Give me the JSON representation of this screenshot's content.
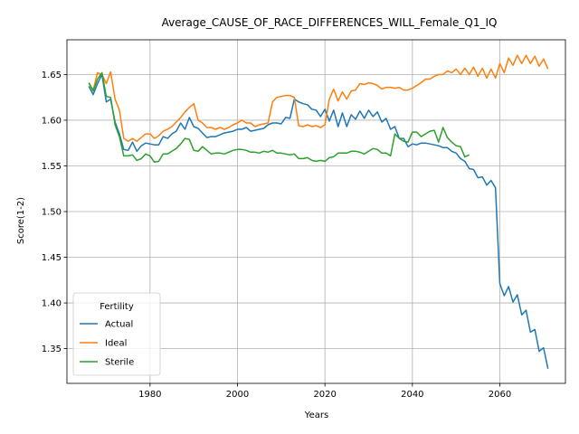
{
  "chart_data": {
    "type": "line",
    "title": "Average_CAUSE_OF_RACE_DIFFERENCES_WILL_Female_Q1_IQ",
    "xlabel": "Years",
    "ylabel": "Score(1-2)",
    "xlim": [
      1961,
      2075
    ],
    "ylim": [
      1.312,
      1.688
    ],
    "xticks": [
      1980,
      2000,
      2020,
      2040,
      2060
    ],
    "yticks": [
      1.35,
      1.4,
      1.45,
      1.5,
      1.55,
      1.6,
      1.65
    ],
    "grid": true,
    "legend": {
      "title": "Fertility",
      "position": "lower-left"
    },
    "series": [
      {
        "name": "Actual",
        "color": "#1f77b4",
        "points": [
          [
            1966,
            1.637
          ],
          [
            1967,
            1.628
          ],
          [
            1968,
            1.64
          ],
          [
            1969,
            1.65
          ],
          [
            1970,
            1.62
          ],
          [
            1971,
            1.623
          ],
          [
            1972,
            1.598
          ],
          [
            1973,
            1.585
          ],
          [
            1974,
            1.568
          ],
          [
            1975,
            1.567
          ],
          [
            1976,
            1.576
          ],
          [
            1977,
            1.566
          ],
          [
            1978,
            1.572
          ],
          [
            1979,
            1.575
          ],
          [
            1980,
            1.574
          ],
          [
            1981,
            1.573
          ],
          [
            1982,
            1.573
          ],
          [
            1983,
            1.582
          ],
          [
            1984,
            1.58
          ],
          [
            1985,
            1.585
          ],
          [
            1986,
            1.588
          ],
          [
            1987,
            1.597
          ],
          [
            1988,
            1.59
          ],
          [
            1989,
            1.603
          ],
          [
            1990,
            1.593
          ],
          [
            1991,
            1.591
          ],
          [
            1992,
            1.586
          ],
          [
            1993,
            1.581
          ],
          [
            1994,
            1.582
          ],
          [
            1995,
            1.582
          ],
          [
            1996,
            1.584
          ],
          [
            1997,
            1.586
          ],
          [
            1998,
            1.587
          ],
          [
            1999,
            1.588
          ],
          [
            2000,
            1.59
          ],
          [
            2001,
            1.59
          ],
          [
            2002,
            1.592
          ],
          [
            2003,
            1.588
          ],
          [
            2004,
            1.589
          ],
          [
            2005,
            1.59
          ],
          [
            2006,
            1.591
          ],
          [
            2007,
            1.595
          ],
          [
            2008,
            1.597
          ],
          [
            2009,
            1.597
          ],
          [
            2010,
            1.596
          ],
          [
            2011,
            1.603
          ],
          [
            2012,
            1.602
          ],
          [
            2013,
            1.623
          ],
          [
            2014,
            1.62
          ],
          [
            2015,
            1.618
          ],
          [
            2016,
            1.617
          ],
          [
            2017,
            1.612
          ],
          [
            2018,
            1.611
          ],
          [
            2019,
            1.604
          ],
          [
            2020,
            1.612
          ],
          [
            2021,
            1.599
          ],
          [
            2022,
            1.611
          ],
          [
            2023,
            1.593
          ],
          [
            2024,
            1.608
          ],
          [
            2025,
            1.593
          ],
          [
            2026,
            1.606
          ],
          [
            2027,
            1.601
          ],
          [
            2028,
            1.61
          ],
          [
            2029,
            1.602
          ],
          [
            2030,
            1.611
          ],
          [
            2031,
            1.604
          ],
          [
            2032,
            1.609
          ],
          [
            2033,
            1.598
          ],
          [
            2034,
            1.602
          ],
          [
            2035,
            1.59
          ],
          [
            2036,
            1.593
          ],
          [
            2037,
            1.58
          ],
          [
            2038,
            1.58
          ],
          [
            2039,
            1.571
          ],
          [
            2040,
            1.574
          ],
          [
            2041,
            1.573
          ],
          [
            2042,
            1.575
          ],
          [
            2043,
            1.575
          ],
          [
            2044,
            1.574
          ],
          [
            2045,
            1.573
          ],
          [
            2046,
            1.572
          ],
          [
            2047,
            1.57
          ],
          [
            2048,
            1.57
          ],
          [
            2049,
            1.566
          ],
          [
            2050,
            1.564
          ],
          [
            2051,
            1.558
          ],
          [
            2052,
            1.555
          ],
          [
            2053,
            1.547
          ],
          [
            2054,
            1.546
          ],
          [
            2055,
            1.537
          ],
          [
            2056,
            1.538
          ],
          [
            2057,
            1.529
          ],
          [
            2058,
            1.534
          ],
          [
            2059,
            1.526
          ],
          [
            2060,
            1.421
          ],
          [
            2061,
            1.408
          ],
          [
            2062,
            1.418
          ],
          [
            2063,
            1.401
          ],
          [
            2064,
            1.409
          ],
          [
            2065,
            1.387
          ],
          [
            2066,
            1.392
          ],
          [
            2067,
            1.368
          ],
          [
            2068,
            1.371
          ],
          [
            2069,
            1.347
          ],
          [
            2070,
            1.351
          ],
          [
            2071,
            1.328
          ]
        ]
      },
      {
        "name": "Ideal",
        "color": "#ff7f0e",
        "points": [
          [
            1966,
            1.64
          ],
          [
            1967,
            1.633
          ],
          [
            1968,
            1.652
          ],
          [
            1969,
            1.65
          ],
          [
            1970,
            1.64
          ],
          [
            1971,
            1.653
          ],
          [
            1972,
            1.623
          ],
          [
            1973,
            1.611
          ],
          [
            1974,
            1.58
          ],
          [
            1975,
            1.577
          ],
          [
            1976,
            1.58
          ],
          [
            1977,
            1.577
          ],
          [
            1978,
            1.581
          ],
          [
            1979,
            1.585
          ],
          [
            1980,
            1.585
          ],
          [
            1981,
            1.58
          ],
          [
            1982,
            1.583
          ],
          [
            1983,
            1.588
          ],
          [
            1984,
            1.59
          ],
          [
            1985,
            1.593
          ],
          [
            1986,
            1.598
          ],
          [
            1987,
            1.603
          ],
          [
            1988,
            1.609
          ],
          [
            1989,
            1.614
          ],
          [
            1990,
            1.618
          ],
          [
            1991,
            1.6
          ],
          [
            1992,
            1.597
          ],
          [
            1993,
            1.592
          ],
          [
            1994,
            1.592
          ],
          [
            1995,
            1.59
          ],
          [
            1996,
            1.592
          ],
          [
            1997,
            1.59
          ],
          [
            1998,
            1.592
          ],
          [
            1999,
            1.595
          ],
          [
            2000,
            1.597
          ],
          [
            2001,
            1.6
          ],
          [
            2002,
            1.597
          ],
          [
            2003,
            1.597
          ],
          [
            2004,
            1.593
          ],
          [
            2005,
            1.595
          ],
          [
            2006,
            1.596
          ],
          [
            2007,
            1.597
          ],
          [
            2008,
            1.62
          ],
          [
            2009,
            1.625
          ],
          [
            2010,
            1.626
          ],
          [
            2011,
            1.627
          ],
          [
            2012,
            1.627
          ],
          [
            2013,
            1.625
          ],
          [
            2014,
            1.594
          ],
          [
            2015,
            1.593
          ],
          [
            2016,
            1.595
          ],
          [
            2017,
            1.593
          ],
          [
            2018,
            1.594
          ],
          [
            2019,
            1.592
          ],
          [
            2020,
            1.595
          ],
          [
            2021,
            1.623
          ],
          [
            2022,
            1.634
          ],
          [
            2023,
            1.621
          ],
          [
            2024,
            1.631
          ],
          [
            2025,
            1.623
          ],
          [
            2026,
            1.632
          ],
          [
            2027,
            1.633
          ],
          [
            2028,
            1.64
          ],
          [
            2029,
            1.639
          ],
          [
            2030,
            1.641
          ],
          [
            2031,
            1.64
          ],
          [
            2032,
            1.638
          ],
          [
            2033,
            1.634
          ],
          [
            2034,
            1.636
          ],
          [
            2035,
            1.636
          ],
          [
            2036,
            1.635
          ],
          [
            2037,
            1.636
          ],
          [
            2038,
            1.633
          ],
          [
            2039,
            1.633
          ],
          [
            2040,
            1.635
          ],
          [
            2041,
            1.638
          ],
          [
            2042,
            1.641
          ],
          [
            2043,
            1.645
          ],
          [
            2044,
            1.645
          ],
          [
            2045,
            1.648
          ],
          [
            2046,
            1.65
          ],
          [
            2047,
            1.65
          ],
          [
            2048,
            1.654
          ],
          [
            2049,
            1.652
          ],
          [
            2050,
            1.656
          ],
          [
            2051,
            1.65
          ],
          [
            2052,
            1.657
          ],
          [
            2053,
            1.65
          ],
          [
            2054,
            1.658
          ],
          [
            2055,
            1.648
          ],
          [
            2056,
            1.657
          ],
          [
            2057,
            1.646
          ],
          [
            2058,
            1.656
          ],
          [
            2059,
            1.646
          ],
          [
            2060,
            1.662
          ],
          [
            2061,
            1.652
          ],
          [
            2062,
            1.668
          ],
          [
            2063,
            1.66
          ],
          [
            2064,
            1.671
          ],
          [
            2065,
            1.662
          ],
          [
            2066,
            1.671
          ],
          [
            2067,
            1.662
          ],
          [
            2068,
            1.67
          ],
          [
            2069,
            1.659
          ],
          [
            2070,
            1.667
          ],
          [
            2071,
            1.656
          ]
        ]
      },
      {
        "name": "Sterile",
        "color": "#2ca02c",
        "points": [
          [
            1966,
            1.641
          ],
          [
            1967,
            1.632
          ],
          [
            1968,
            1.645
          ],
          [
            1969,
            1.652
          ],
          [
            1970,
            1.626
          ],
          [
            1971,
            1.625
          ],
          [
            1972,
            1.595
          ],
          [
            1973,
            1.582
          ],
          [
            1974,
            1.561
          ],
          [
            1975,
            1.561
          ],
          [
            1976,
            1.562
          ],
          [
            1977,
            1.556
          ],
          [
            1978,
            1.558
          ],
          [
            1979,
            1.563
          ],
          [
            1980,
            1.561
          ],
          [
            1981,
            1.554
          ],
          [
            1982,
            1.555
          ],
          [
            1983,
            1.563
          ],
          [
            1984,
            1.563
          ],
          [
            1985,
            1.566
          ],
          [
            1986,
            1.569
          ],
          [
            1987,
            1.574
          ],
          [
            1988,
            1.58
          ],
          [
            1989,
            1.579
          ],
          [
            1990,
            1.567
          ],
          [
            1991,
            1.566
          ],
          [
            1992,
            1.571
          ],
          [
            1993,
            1.567
          ],
          [
            1994,
            1.563
          ],
          [
            1995,
            1.564
          ],
          [
            1996,
            1.564
          ],
          [
            1997,
            1.563
          ],
          [
            1998,
            1.565
          ],
          [
            1999,
            1.567
          ],
          [
            2000,
            1.568
          ],
          [
            2001,
            1.568
          ],
          [
            2002,
            1.567
          ],
          [
            2003,
            1.565
          ],
          [
            2004,
            1.565
          ],
          [
            2005,
            1.564
          ],
          [
            2006,
            1.566
          ],
          [
            2007,
            1.565
          ],
          [
            2008,
            1.567
          ],
          [
            2009,
            1.564
          ],
          [
            2010,
            1.564
          ],
          [
            2011,
            1.563
          ],
          [
            2012,
            1.562
          ],
          [
            2013,
            1.563
          ],
          [
            2014,
            1.558
          ],
          [
            2015,
            1.558
          ],
          [
            2016,
            1.559
          ],
          [
            2017,
            1.556
          ],
          [
            2018,
            1.555
          ],
          [
            2019,
            1.556
          ],
          [
            2020,
            1.555
          ],
          [
            2021,
            1.559
          ],
          [
            2022,
            1.56
          ],
          [
            2023,
            1.564
          ],
          [
            2024,
            1.564
          ],
          [
            2025,
            1.564
          ],
          [
            2026,
            1.566
          ],
          [
            2027,
            1.566
          ],
          [
            2028,
            1.565
          ],
          [
            2029,
            1.563
          ],
          [
            2030,
            1.566
          ],
          [
            2031,
            1.569
          ],
          [
            2032,
            1.568
          ],
          [
            2033,
            1.564
          ],
          [
            2034,
            1.564
          ],
          [
            2035,
            1.561
          ],
          [
            2036,
            1.585
          ],
          [
            2037,
            1.58
          ],
          [
            2038,
            1.577
          ],
          [
            2039,
            1.576
          ],
          [
            2040,
            1.587
          ],
          [
            2041,
            1.587
          ],
          [
            2042,
            1.582
          ],
          [
            2043,
            1.585
          ],
          [
            2044,
            1.588
          ],
          [
            2045,
            1.589
          ],
          [
            2046,
            1.576
          ],
          [
            2047,
            1.592
          ],
          [
            2048,
            1.581
          ],
          [
            2049,
            1.576
          ],
          [
            2050,
            1.572
          ],
          [
            2051,
            1.571
          ],
          [
            2052,
            1.56
          ],
          [
            2053,
            1.562
          ]
        ]
      }
    ]
  }
}
